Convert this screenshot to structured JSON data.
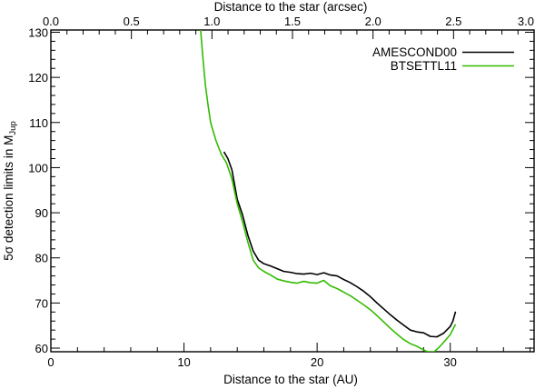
{
  "chart_data": {
    "type": "line",
    "title": "",
    "xlabel": "Distance to the star (AU)",
    "x2label": "Distance to the star (arcsec)",
    "ylabel_main": "5σ detection limits in M",
    "ylabel_sub": "Jup",
    "xlim": [
      0,
      36.3
    ],
    "x2lim": [
      0,
      3.0
    ],
    "ylim": [
      59.2,
      130.5
    ],
    "x_ticks": [
      0,
      10,
      20,
      30
    ],
    "x_tick_labels": [
      "0",
      "10",
      "20",
      "30"
    ],
    "x_minor_step": 2,
    "x2_ticks": [
      0.0,
      0.5,
      1.0,
      1.5,
      2.0,
      2.5,
      3.0
    ],
    "x2_tick_labels": [
      "0.0",
      "0.5",
      "1.0",
      "1.5",
      "2.0",
      "2.5",
      "3.0"
    ],
    "x2_minor_step": 0.1,
    "y_ticks": [
      60,
      70,
      80,
      90,
      100,
      110,
      120,
      130
    ],
    "y_tick_labels": [
      "60",
      "70",
      "80",
      "90",
      "100",
      "110",
      "120",
      "130"
    ],
    "y_minor_step": 2,
    "grid": false,
    "legend_position": "top-right",
    "series": [
      {
        "name": "AMESCOND00",
        "color": "#000000",
        "points": [
          [
            13.0,
            103.5
          ],
          [
            13.3,
            102.0
          ],
          [
            13.6,
            99.5
          ],
          [
            14.0,
            93.0
          ],
          [
            14.4,
            89.5
          ],
          [
            14.8,
            85.0
          ],
          [
            15.2,
            81.5
          ],
          [
            15.6,
            79.5
          ],
          [
            16.0,
            78.7
          ],
          [
            16.5,
            78.2
          ],
          [
            17.0,
            77.6
          ],
          [
            17.5,
            77.0
          ],
          [
            18.0,
            76.8
          ],
          [
            18.5,
            76.5
          ],
          [
            19.0,
            76.4
          ],
          [
            19.5,
            76.6
          ],
          [
            20.0,
            76.3
          ],
          [
            20.5,
            76.7
          ],
          [
            21.0,
            76.2
          ],
          [
            21.5,
            76.0
          ],
          [
            22.0,
            75.2
          ],
          [
            22.5,
            74.5
          ],
          [
            23.0,
            73.6
          ],
          [
            23.5,
            72.6
          ],
          [
            24.0,
            71.4
          ],
          [
            24.5,
            70.0
          ],
          [
            25.0,
            68.7
          ],
          [
            25.5,
            67.4
          ],
          [
            26.0,
            66.2
          ],
          [
            26.5,
            65.1
          ],
          [
            27.0,
            64.0
          ],
          [
            27.5,
            63.6
          ],
          [
            28.0,
            63.4
          ],
          [
            28.5,
            62.6
          ],
          [
            29.0,
            62.5
          ],
          [
            29.5,
            63.3
          ],
          [
            30.0,
            64.8
          ],
          [
            30.2,
            66.0
          ],
          [
            30.4,
            68.1
          ]
        ]
      },
      {
        "name": "BTSETTL11",
        "color": "#33bb00",
        "points": [
          [
            11.25,
            130.5
          ],
          [
            11.4,
            125.0
          ],
          [
            11.6,
            118.5
          ],
          [
            11.8,
            114.0
          ],
          [
            12.0,
            110.0
          ],
          [
            12.4,
            106.0
          ],
          [
            12.8,
            103.0
          ],
          [
            13.2,
            101.0
          ],
          [
            13.6,
            97.5
          ],
          [
            14.0,
            92.0
          ],
          [
            14.4,
            88.0
          ],
          [
            14.8,
            83.5
          ],
          [
            15.2,
            79.5
          ],
          [
            15.6,
            77.8
          ],
          [
            16.0,
            77.0
          ],
          [
            16.5,
            76.2
          ],
          [
            17.0,
            75.3
          ],
          [
            17.5,
            74.9
          ],
          [
            18.0,
            74.6
          ],
          [
            18.5,
            74.4
          ],
          [
            19.0,
            74.8
          ],
          [
            19.5,
            74.5
          ],
          [
            20.0,
            74.4
          ],
          [
            20.5,
            75.0
          ],
          [
            21.0,
            73.8
          ],
          [
            21.5,
            73.2
          ],
          [
            22.0,
            72.4
          ],
          [
            22.5,
            71.6
          ],
          [
            23.0,
            70.6
          ],
          [
            23.5,
            69.6
          ],
          [
            24.0,
            68.5
          ],
          [
            24.5,
            67.2
          ],
          [
            25.0,
            65.8
          ],
          [
            25.5,
            64.4
          ],
          [
            26.0,
            63.1
          ],
          [
            26.5,
            61.9
          ],
          [
            27.0,
            61.0
          ],
          [
            27.5,
            60.4
          ],
          [
            28.0,
            59.6
          ],
          [
            28.3,
            59.2
          ],
          [
            28.8,
            59.2
          ],
          [
            29.2,
            60.3
          ],
          [
            29.6,
            61.6
          ],
          [
            30.0,
            63.0
          ],
          [
            30.4,
            65.3
          ]
        ]
      }
    ]
  }
}
